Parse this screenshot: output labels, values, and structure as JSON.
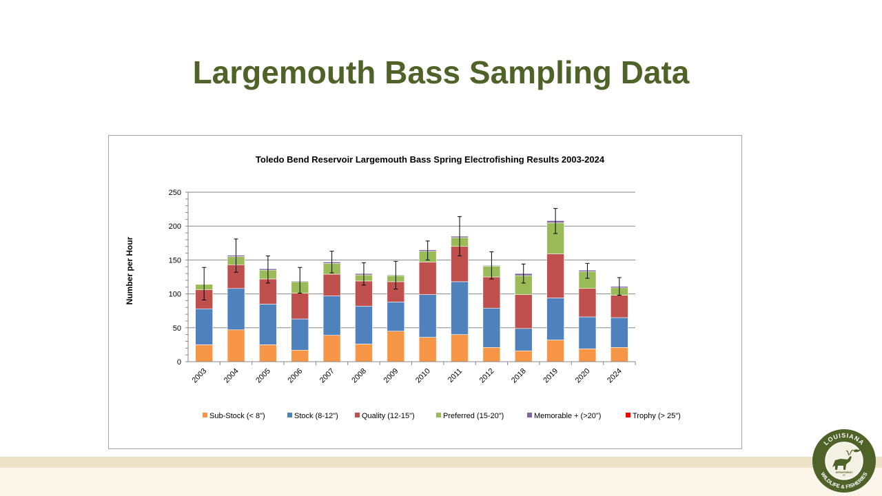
{
  "slide": {
    "title": "Largemouth Bass Sampling Data"
  },
  "logo": {
    "top_text": "LOUISIANA",
    "bottom_text": "WILDLIFE & FISHERIES",
    "center_text": "DEPARTMENT",
    "center_sub": "OF"
  },
  "colors": {
    "title": "#4f6228",
    "sub_stock": "#f79646",
    "stock": "#4f81bd",
    "quality": "#c0504d",
    "preferred": "#9bbb59",
    "memorable": "#8064a2",
    "trophy": "#ff0000"
  },
  "chart_data": {
    "type": "bar",
    "stacked": true,
    "title": "Toledo Bend Reservoir Largemouth Bass Spring Electrofishing Results 2003-2024",
    "xlabel": "",
    "ylabel": "Number per Hour",
    "ylim": [
      0,
      250
    ],
    "yticks": [
      0,
      50,
      100,
      150,
      200,
      250
    ],
    "grid": true,
    "legend_position": "bottom",
    "categories": [
      "2003",
      "2004",
      "2005",
      "2006",
      "2007",
      "2008",
      "2009",
      "2010",
      "2011",
      "2012",
      "2018",
      "2019",
      "2020",
      "2024"
    ],
    "series": [
      {
        "name": "Sub-Stock (< 8\")",
        "color": "#f79646",
        "values": [
          25,
          47,
          25,
          17,
          39,
          26,
          45,
          36,
          40,
          21,
          16,
          32,
          19,
          21
        ]
      },
      {
        "name": "Stock (8-12\")",
        "color": "#4f81bd",
        "values": [
          53,
          61,
          60,
          46,
          58,
          56,
          43,
          63,
          78,
          58,
          33,
          62,
          47,
          44
        ]
      },
      {
        "name": "Quality (12-15\")",
        "color": "#c0504d",
        "values": [
          28,
          35,
          37,
          38,
          32,
          37,
          30,
          48,
          52,
          46,
          50,
          65,
          42,
          33
        ]
      },
      {
        "name": "Preferred (15-20\")",
        "color": "#9bbb59",
        "values": [
          8,
          12,
          13,
          17,
          16,
          9,
          9,
          16,
          13,
          16,
          28,
          46,
          25,
          11
        ]
      },
      {
        "name": "Memorable + (>20\")",
        "color": "#8064a2",
        "values": [
          0,
          2,
          2,
          1,
          2,
          2,
          1,
          2,
          2,
          1,
          3,
          3,
          2,
          2
        ]
      },
      {
        "name": "Trophy (> 25\")",
        "color": "#ff0000",
        "values": [
          0,
          0,
          0,
          0,
          0,
          0,
          0,
          0,
          0,
          0,
          0,
          0,
          0,
          0
        ]
      }
    ],
    "error_bars": {
      "low": [
        91,
        132,
        116,
        101,
        131,
        113,
        107,
        150,
        156,
        122,
        116,
        189,
        123,
        98
      ],
      "high": [
        139,
        181,
        156,
        139,
        163,
        146,
        148,
        178,
        214,
        162,
        144,
        226,
        145,
        124
      ]
    }
  }
}
